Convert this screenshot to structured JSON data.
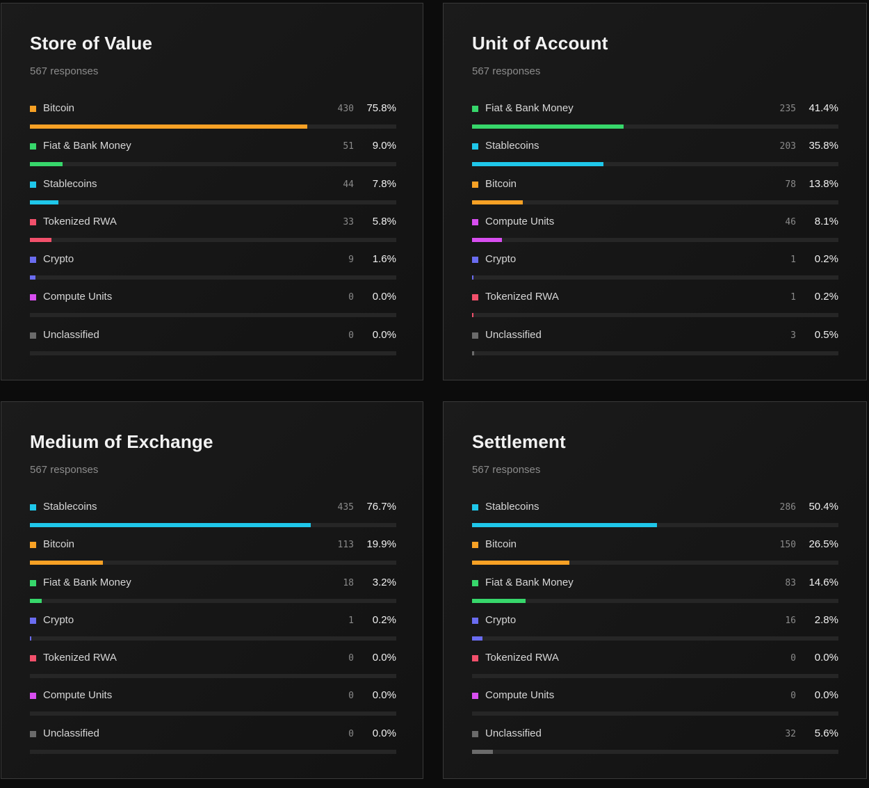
{
  "colors": {
    "Bitcoin": "#f7a125",
    "Fiat & Bank Money": "#37d76b",
    "Stablecoins": "#1fc7ea",
    "Tokenized RWA": "#f2506b",
    "Crypto": "#6a6cf0",
    "Compute Units": "#d84ef0",
    "Unclassified": "#6b6b6b"
  },
  "chart_data": [
    {
      "type": "bar",
      "title": "Store of Value",
      "subtitle": "567 responses",
      "categories": [
        "Bitcoin",
        "Fiat & Bank Money",
        "Stablecoins",
        "Tokenized RWA",
        "Crypto",
        "Compute Units",
        "Unclassified"
      ],
      "counts": [
        "430",
        "51",
        "44",
        "33",
        "9",
        "0",
        "0"
      ],
      "percent_labels": [
        "75.8%",
        "9.0%",
        "7.8%",
        "5.8%",
        "1.6%",
        "0.0%",
        "0.0%"
      ],
      "values": [
        75.8,
        9.0,
        7.8,
        5.8,
        1.6,
        0.0,
        0.0
      ]
    },
    {
      "type": "bar",
      "title": "Unit of Account",
      "subtitle": "567 responses",
      "categories": [
        "Fiat & Bank Money",
        "Stablecoins",
        "Bitcoin",
        "Compute Units",
        "Crypto",
        "Tokenized RWA",
        "Unclassified"
      ],
      "counts": [
        "235",
        "203",
        "78",
        "46",
        "1",
        "1",
        "3"
      ],
      "percent_labels": [
        "41.4%",
        "35.8%",
        "13.8%",
        "8.1%",
        "0.2%",
        "0.2%",
        "0.5%"
      ],
      "values": [
        41.4,
        35.8,
        13.8,
        8.1,
        0.2,
        0.2,
        0.5
      ]
    },
    {
      "type": "bar",
      "title": "Medium of Exchange",
      "subtitle": "567 responses",
      "categories": [
        "Stablecoins",
        "Bitcoin",
        "Fiat & Bank Money",
        "Crypto",
        "Tokenized RWA",
        "Compute Units",
        "Unclassified"
      ],
      "counts": [
        "435",
        "113",
        "18",
        "1",
        "0",
        "0",
        "0"
      ],
      "percent_labels": [
        "76.7%",
        "19.9%",
        "3.2%",
        "0.2%",
        "0.0%",
        "0.0%",
        "0.0%"
      ],
      "values": [
        76.7,
        19.9,
        3.2,
        0.2,
        0.0,
        0.0,
        0.0
      ]
    },
    {
      "type": "bar",
      "title": "Settlement",
      "subtitle": "567 responses",
      "categories": [
        "Stablecoins",
        "Bitcoin",
        "Fiat & Bank Money",
        "Crypto",
        "Tokenized RWA",
        "Compute Units",
        "Unclassified"
      ],
      "counts": [
        "286",
        "150",
        "83",
        "16",
        "0",
        "0",
        "32"
      ],
      "percent_labels": [
        "50.4%",
        "26.5%",
        "14.6%",
        "2.8%",
        "0.0%",
        "0.0%",
        "5.6%"
      ],
      "values": [
        50.4,
        26.5,
        14.6,
        2.8,
        0.0,
        0.0,
        5.6
      ]
    }
  ]
}
